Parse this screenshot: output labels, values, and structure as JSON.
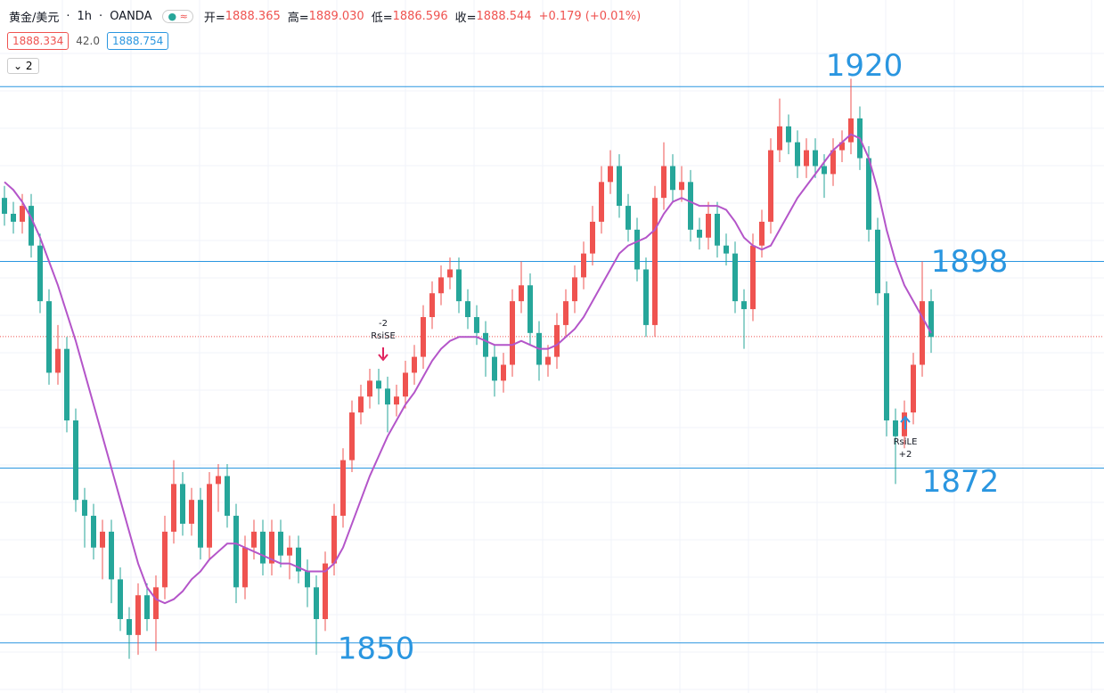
{
  "chart_data": {
    "type": "candlestick",
    "header": {
      "symbol": "黄金/美元",
      "interval": "1h",
      "source": "OANDA",
      "open_label": "开=",
      "open": 1888.365,
      "high_label": "高=",
      "high": "1889.030",
      "low_label": "低=",
      "low": 1886.596,
      "close_label": "收=",
      "close": 1888.544,
      "change": "+0.179 (+0.01%)"
    },
    "bid": 1888.334,
    "spread": "42.0",
    "ask": 1888.754,
    "indicator_count": 2,
    "ylim": [
      1843.7,
      1930.9
    ],
    "up_color": "#ef5350",
    "down_color": "#26a69a",
    "ma_color": "#b455c9",
    "level_color": "#2a96e0",
    "levels": [
      1920,
      1898,
      1872,
      1850
    ],
    "signals": [
      {
        "qty": "-2",
        "name": "RsiSE"
      },
      {
        "name": "RsiLE",
        "qty": "+2"
      }
    ],
    "open": [
      1906,
      1904,
      1903,
      1905,
      1900,
      1893,
      1884,
      1887,
      1878,
      1868,
      1866,
      1862,
      1864,
      1858,
      1853,
      1851,
      1856,
      1853,
      1857,
      1864,
      1870,
      1865,
      1868,
      1862,
      1870,
      1871,
      1866,
      1857,
      1862,
      1864,
      1860,
      1864,
      1861,
      1862,
      1859,
      1857,
      1853,
      1860,
      1866,
      1873,
      1879,
      1881,
      1883,
      1882,
      1880,
      1881,
      1884,
      1886,
      1891,
      1894,
      1896,
      1897,
      1893,
      1891,
      1889,
      1886,
      1883,
      1885,
      1893,
      1895,
      1889,
      1885,
      1886,
      1890,
      1893,
      1896,
      1899,
      1903,
      1908,
      1910,
      1905,
      1902,
      1897,
      1890,
      1906,
      1910,
      1907,
      1908,
      1902,
      1901,
      1904,
      1900,
      1899,
      1893,
      1892,
      1900,
      1903,
      1912,
      1915,
      1913,
      1910,
      1912,
      1910,
      1909,
      1912,
      1913,
      1916,
      1911,
      1902,
      1894,
      1878,
      1876,
      1879,
      1885,
      1893
    ],
    "high": [
      1907.5,
      1905.5,
      1906.5,
      1906.5,
      1901.5,
      1894.5,
      1890,
      1888.5,
      1879.5,
      1869.5,
      1867.5,
      1865.5,
      1865.5,
      1859.5,
      1854.5,
      1857.5,
      1857.5,
      1858.5,
      1866,
      1873,
      1871.5,
      1869.5,
      1869.5,
      1871.5,
      1872.5,
      1872.5,
      1867.5,
      1863.5,
      1865.5,
      1865.5,
      1865.5,
      1865.5,
      1863.5,
      1863.5,
      1860.5,
      1858.5,
      1861.5,
      1867.5,
      1874.5,
      1880.5,
      1882.5,
      1884.5,
      1884.5,
      1883.5,
      1882.5,
      1885.5,
      1887.5,
      1892.5,
      1895.5,
      1897.5,
      1898.5,
      1898.5,
      1894.5,
      1892.5,
      1890.5,
      1887.5,
      1886.5,
      1894.5,
      1898,
      1896.5,
      1890.5,
      1887.5,
      1891.5,
      1894.5,
      1897.5,
      1900.5,
      1905,
      1910,
      1912,
      1911.5,
      1906.5,
      1903.5,
      1898.5,
      1907.5,
      1913,
      1911.5,
      1910,
      1909.5,
      1903.5,
      1905.5,
      1905.5,
      1901.5,
      1900.5,
      1894.5,
      1901.5,
      1904.5,
      1913.5,
      1918.5,
      1916.5,
      1914.5,
      1913.5,
      1913.5,
      1911.5,
      1913.5,
      1914.5,
      1921,
      1917.5,
      1912.5,
      1903.5,
      1895.5,
      1879.5,
      1880.5,
      1886.5,
      1898,
      1894.5
    ],
    "low": [
      1902.5,
      1901.5,
      1901.5,
      1898.5,
      1891.5,
      1882.5,
      1882.5,
      1876.5,
      1866.5,
      1862,
      1860.5,
      1858,
      1855,
      1851.5,
      1848,
      1848.5,
      1851.5,
      1849,
      1855.5,
      1862.5,
      1863.5,
      1863.5,
      1860.5,
      1860.5,
      1866.5,
      1864.5,
      1855,
      1855.5,
      1860.5,
      1858.5,
      1858.5,
      1859.5,
      1858,
      1857.5,
      1854.5,
      1848.5,
      1851.5,
      1858.5,
      1864.5,
      1871.5,
      1877.5,
      1879.5,
      1880,
      1876.5,
      1878.5,
      1879.5,
      1882.5,
      1884.5,
      1889.5,
      1892.5,
      1894.5,
      1891.5,
      1889.5,
      1887.5,
      1883.5,
      1881,
      1881.5,
      1883.5,
      1891.5,
      1887.5,
      1883,
      1883.5,
      1884.5,
      1888.5,
      1891.5,
      1894.5,
      1897.5,
      1901.5,
      1906.5,
      1903.5,
      1900.5,
      1895.5,
      1888.5,
      1888.5,
      1904.5,
      1905.5,
      1905.5,
      1900.5,
      1899.5,
      1899.5,
      1898.5,
      1897.5,
      1891.5,
      1887,
      1890.5,
      1898.5,
      1901.5,
      1910.5,
      1911.5,
      1908.5,
      1908.5,
      1908.5,
      1906,
      1907.5,
      1910.5,
      1911.5,
      1909.5,
      1900.5,
      1892.5,
      1876,
      1870,
      1874.5,
      1877.5,
      1883.5,
      1886.5
    ],
    "close": [
      1904,
      1903,
      1905,
      1900,
      1893,
      1884,
      1887,
      1878,
      1868,
      1866,
      1862,
      1864,
      1858,
      1853,
      1851,
      1856,
      1853,
      1857,
      1864,
      1870,
      1865,
      1868,
      1862,
      1870,
      1871,
      1866,
      1857,
      1862,
      1864,
      1860,
      1864,
      1861,
      1862,
      1859,
      1857,
      1853,
      1860,
      1866,
      1873,
      1879,
      1881,
      1883,
      1882,
      1880,
      1881,
      1884,
      1886,
      1891,
      1894,
      1896,
      1897,
      1893,
      1891,
      1889,
      1886,
      1883,
      1885,
      1893,
      1895,
      1889,
      1885,
      1886,
      1890,
      1893,
      1896,
      1899,
      1903,
      1908,
      1910,
      1905,
      1902,
      1897,
      1890,
      1906,
      1910,
      1907,
      1908,
      1902,
      1901,
      1904,
      1900,
      1899,
      1893,
      1892,
      1900,
      1903,
      1912,
      1915,
      1913,
      1910,
      1912,
      1910,
      1909,
      1912,
      1913,
      1916,
      1911,
      1902,
      1894,
      1878,
      1876,
      1879,
      1885,
      1893,
      1888.5
    ],
    "ma": [
      1908,
      1907,
      1905.5,
      1903.5,
      1901,
      1898,
      1895,
      1891.5,
      1888,
      1884,
      1880,
      1876,
      1872,
      1868,
      1864,
      1860,
      1857,
      1855.5,
      1855,
      1855.5,
      1856.5,
      1858,
      1859,
      1860.5,
      1861.5,
      1862.5,
      1862.5,
      1862,
      1861.5,
      1861,
      1860.5,
      1860,
      1860,
      1859.5,
      1859,
      1859,
      1859,
      1860,
      1862,
      1865,
      1868,
      1871,
      1873.5,
      1876,
      1878,
      1880,
      1881.5,
      1883.5,
      1885.5,
      1887,
      1888,
      1888.5,
      1888.5,
      1888.5,
      1888,
      1887.5,
      1887.5,
      1887.5,
      1888,
      1887.5,
      1887,
      1887,
      1887.5,
      1888.5,
      1889.5,
      1891,
      1893,
      1895,
      1897,
      1899,
      1900,
      1900.5,
      1901,
      1902,
      1904,
      1905.5,
      1906,
      1905.5,
      1905,
      1905,
      1905,
      1904.5,
      1903,
      1901,
      1900,
      1899.5,
      1900,
      1902,
      1904,
      1906,
      1907.5,
      1909,
      1910.5,
      1912,
      1913,
      1914,
      1913.5,
      1911,
      1907,
      1902,
      1898,
      1895,
      1893,
      1891,
      1889
    ]
  }
}
